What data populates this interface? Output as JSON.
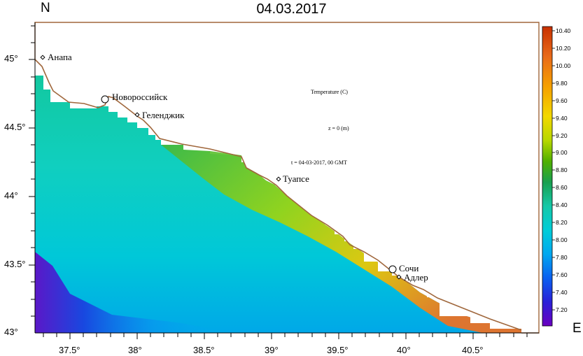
{
  "map": {
    "title": "04.03.2017",
    "north_label": "N",
    "east_label": "E",
    "y_ticks": [
      "45°",
      "44.5°",
      "44°",
      "43.5°",
      "43°"
    ],
    "x_ticks": [
      "37.5°",
      "38°",
      "38.5°",
      "39°",
      "39.5°",
      "40°",
      "40.5°"
    ],
    "coast_color": "#a0673c",
    "annotations": {
      "variable": "Temperature (C)",
      "depth": "z = 0 (m)",
      "time": "t = 04-03-2017, 00 GMT"
    },
    "cities": [
      {
        "name": "Анапа",
        "marker": "small-diamond"
      },
      {
        "name": "Новороссийск",
        "marker": "large-circle"
      },
      {
        "name": "Геленджик",
        "marker": "small-diamond"
      },
      {
        "name": "Туапсе",
        "marker": "small-diamond"
      },
      {
        "name": "Сочи",
        "marker": "large-circle"
      },
      {
        "name": "Адлер",
        "marker": "small-diamond"
      }
    ],
    "colorbar": {
      "min": 7.1,
      "max": 10.4,
      "labels": [
        "10.40",
        "10.20",
        "10.00",
        "9.80",
        "9.60",
        "9.40",
        "9.20",
        "9.00",
        "8.80",
        "8.60",
        "8.40",
        "8.20",
        "8.00",
        "7.80",
        "7.60",
        "7.40",
        "7.20"
      ],
      "colors": [
        "#cc3300",
        "#e86a1a",
        "#f5a000",
        "#f2d200",
        "#c8dc00",
        "#7fcc00",
        "#2a9c1a",
        "#1aaa60",
        "#15c8a0",
        "#00cdd0",
        "#00b8ee",
        "#0080f0",
        "#1a38d8",
        "#5010c8",
        "#6a00c0"
      ]
    }
  }
}
